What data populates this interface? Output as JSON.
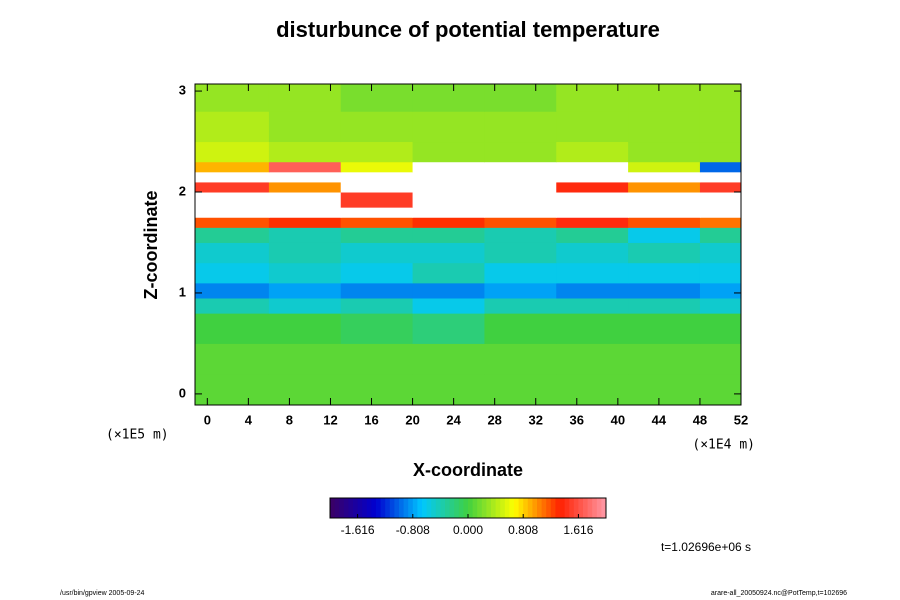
{
  "chart_data": {
    "type": "heatmap",
    "title": "disturbunce of potential temperature",
    "x_label": "X-coordinate",
    "y_label": "Z-coordinate",
    "x_unit": "(×1E4 m)",
    "y_unit": "(×1E5 m)",
    "time_label": "t=1.02696e+06 s",
    "footer_left": "/usr/bin/gpview 2005-09-24",
    "footer_right": "arare-all_20050924.nc@PotTemp,t=102696",
    "xlim": [
      -1.2,
      52
    ],
    "ylim": [
      -0.11,
      3.07
    ],
    "xticks": [
      0,
      4,
      8,
      12,
      16,
      20,
      24,
      28,
      32,
      36,
      40,
      44,
      48,
      52
    ],
    "yticks": [
      0,
      1,
      2,
      3
    ],
    "x_edges": [
      -1.2,
      6,
      13,
      20,
      27,
      34,
      41,
      48,
      52
    ],
    "z_edges": [
      -0.11,
      0.2,
      0.5,
      0.8,
      0.95,
      1.1,
      1.3,
      1.5,
      1.65,
      1.75,
      1.85,
      2.0,
      2.1,
      2.2,
      2.3,
      2.5,
      2.8,
      3.07
    ],
    "values": [
      [
        0.1,
        0.1,
        0.1,
        0.1,
        0.1,
        0.1,
        0.1,
        0.1
      ],
      [
        0.1,
        0.1,
        0.1,
        0.1,
        0.1,
        0.1,
        0.1,
        0.1
      ],
      [
        0.0,
        0.0,
        -0.1,
        -0.2,
        0.0,
        0.0,
        0.0,
        0.0
      ],
      [
        -0.4,
        -0.5,
        -0.4,
        -0.6,
        -0.4,
        -0.4,
        -0.4,
        -0.5
      ],
      [
        -0.9,
        -0.8,
        -0.9,
        -0.9,
        -0.8,
        -0.9,
        -0.9,
        -0.8
      ],
      [
        -0.6,
        -0.5,
        -0.6,
        -0.4,
        -0.6,
        -0.6,
        -0.6,
        -0.6
      ],
      [
        -0.5,
        -0.4,
        -0.5,
        -0.5,
        -0.4,
        -0.5,
        -0.4,
        -0.5
      ],
      [
        -0.3,
        -0.4,
        -0.3,
        -0.3,
        -0.4,
        -0.3,
        -0.6,
        -0.3
      ],
      [
        1.2,
        1.3,
        1.2,
        1.3,
        1.2,
        1.4,
        1.2,
        1.1
      ],
      [
        2.5,
        2.5,
        2.5,
        2.5,
        2.5,
        2.5,
        2.5,
        2.5
      ],
      [
        2.5,
        2.5,
        1.5,
        2.5,
        2.5,
        2.5,
        2.5,
        2.5
      ],
      [
        1.5,
        1.0,
        2.5,
        2.5,
        2.5,
        1.4,
        1.0,
        1.5
      ],
      [
        2.5,
        2.5,
        2.5,
        2.5,
        2.5,
        2.5,
        2.5,
        2.5
      ],
      [
        0.9,
        1.7,
        0.6,
        2.5,
        2.5,
        2.5,
        0.5,
        -1.0
      ],
      [
        0.5,
        0.4,
        0.4,
        0.3,
        0.3,
        0.4,
        0.3,
        0.3
      ],
      [
        0.4,
        0.3,
        0.3,
        0.3,
        0.3,
        0.3,
        0.3,
        0.3
      ],
      [
        0.3,
        0.3,
        0.2,
        0.2,
        0.2,
        0.3,
        0.3,
        0.3
      ]
    ],
    "clim": [
      -2.02,
      2.02
    ],
    "colorbar_ticks": [
      -1.616,
      -0.808,
      {
        "value": 0,
        "label": "0.000"
      },
      0.808,
      1.616
    ],
    "colors": [
      "#3c0064",
      "#0000d0",
      "#00c8ff",
      "#40d040",
      "#ffff00",
      "#ff2000",
      "#ff9aa8"
    ],
    "out_of_range_color": "#ffffff"
  }
}
